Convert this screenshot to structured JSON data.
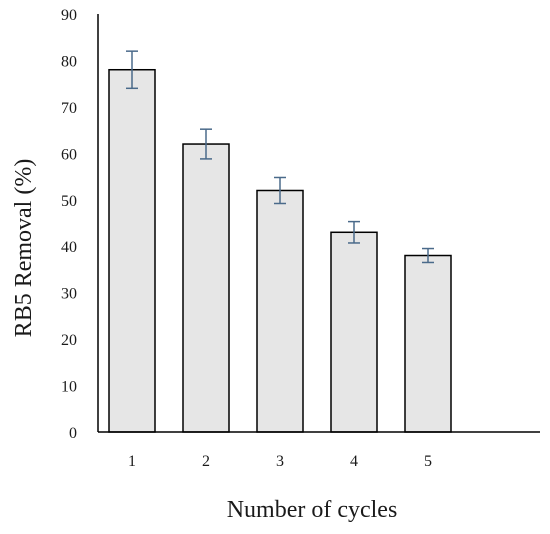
{
  "chart_data": {
    "type": "bar",
    "title": "",
    "xlabel": "Number of cycles",
    "ylabel": "RB5 Removal (%)",
    "categories": [
      "1",
      "2",
      "3",
      "4",
      "5"
    ],
    "values": [
      78,
      62,
      52,
      43,
      38
    ],
    "errors": [
      4,
      3.2,
      2.8,
      2.3,
      1.5
    ],
    "ylim": [
      0,
      90
    ],
    "yticks": [
      "0",
      "10",
      "20",
      "30",
      "40",
      "50",
      "60",
      "70",
      "80",
      "90"
    ],
    "grid": false,
    "legend": "none",
    "bar_fill": "#e6e6e6",
    "bar_stroke": "#000000",
    "error_color": "#4a6a8a"
  }
}
